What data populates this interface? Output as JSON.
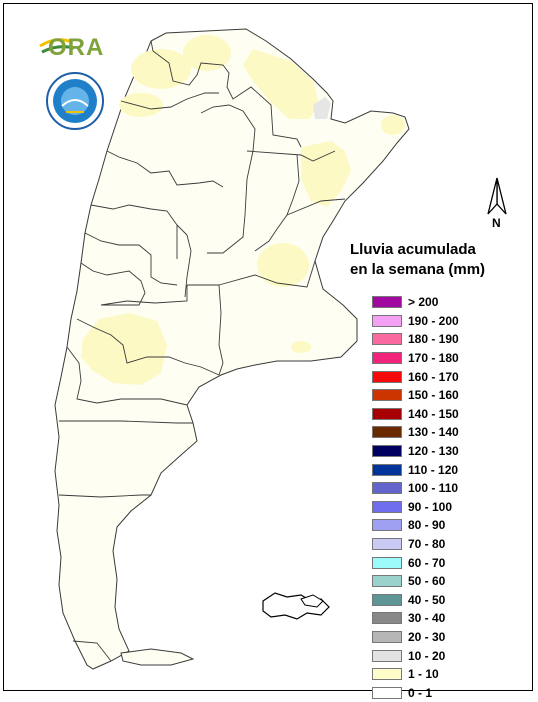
{
  "logos": {
    "ora_text": "ORA",
    "seal_name": "seal-emblem"
  },
  "north_arrow": {
    "label": "N"
  },
  "legend": {
    "title_line1": "Lluvia acumulada",
    "title_line2": "en la semana (mm)",
    "items": [
      {
        "label": "> 200",
        "color": "#a0089f"
      },
      {
        "label": "190 - 200",
        "color": "#f4a0f4"
      },
      {
        "label": "180 - 190",
        "color": "#f86aa0"
      },
      {
        "label": "170 - 180",
        "color": "#f0247a"
      },
      {
        "label": "160 - 170",
        "color": "#f40a0a"
      },
      {
        "label": "150 - 160",
        "color": "#cc3400"
      },
      {
        "label": "140 - 150",
        "color": "#a80000"
      },
      {
        "label": "130 - 140",
        "color": "#6a2a00"
      },
      {
        "label": "120 - 130",
        "color": "#000060"
      },
      {
        "label": "110 - 120",
        "color": "#00349a"
      },
      {
        "label": "100 - 110",
        "color": "#6464cc"
      },
      {
        "label": "90 - 100",
        "color": "#6e6eee"
      },
      {
        "label": "80 - 90",
        "color": "#a0a0f2"
      },
      {
        "label": "70 - 80",
        "color": "#cacaf4"
      },
      {
        "label": "60 - 70",
        "color": "#9cfafa"
      },
      {
        "label": "50 - 60",
        "color": "#9ad2cc"
      },
      {
        "label": "40 - 50",
        "color": "#5e9696"
      },
      {
        "label": "30 - 40",
        "color": "#888888"
      },
      {
        "label": "20 - 30",
        "color": "#b6b6b6"
      },
      {
        "label": "10 - 20",
        "color": "#e2e2e2"
      },
      {
        "label": "1 - 10",
        "color": "#fefcc8"
      },
      {
        "label": "0 - 1",
        "color": "#ffffff"
      }
    ]
  },
  "map": {
    "land_color": "#fefef2",
    "rain_light_color": "#fdf9c4",
    "rain_trace_color": "#e6e6e6"
  }
}
